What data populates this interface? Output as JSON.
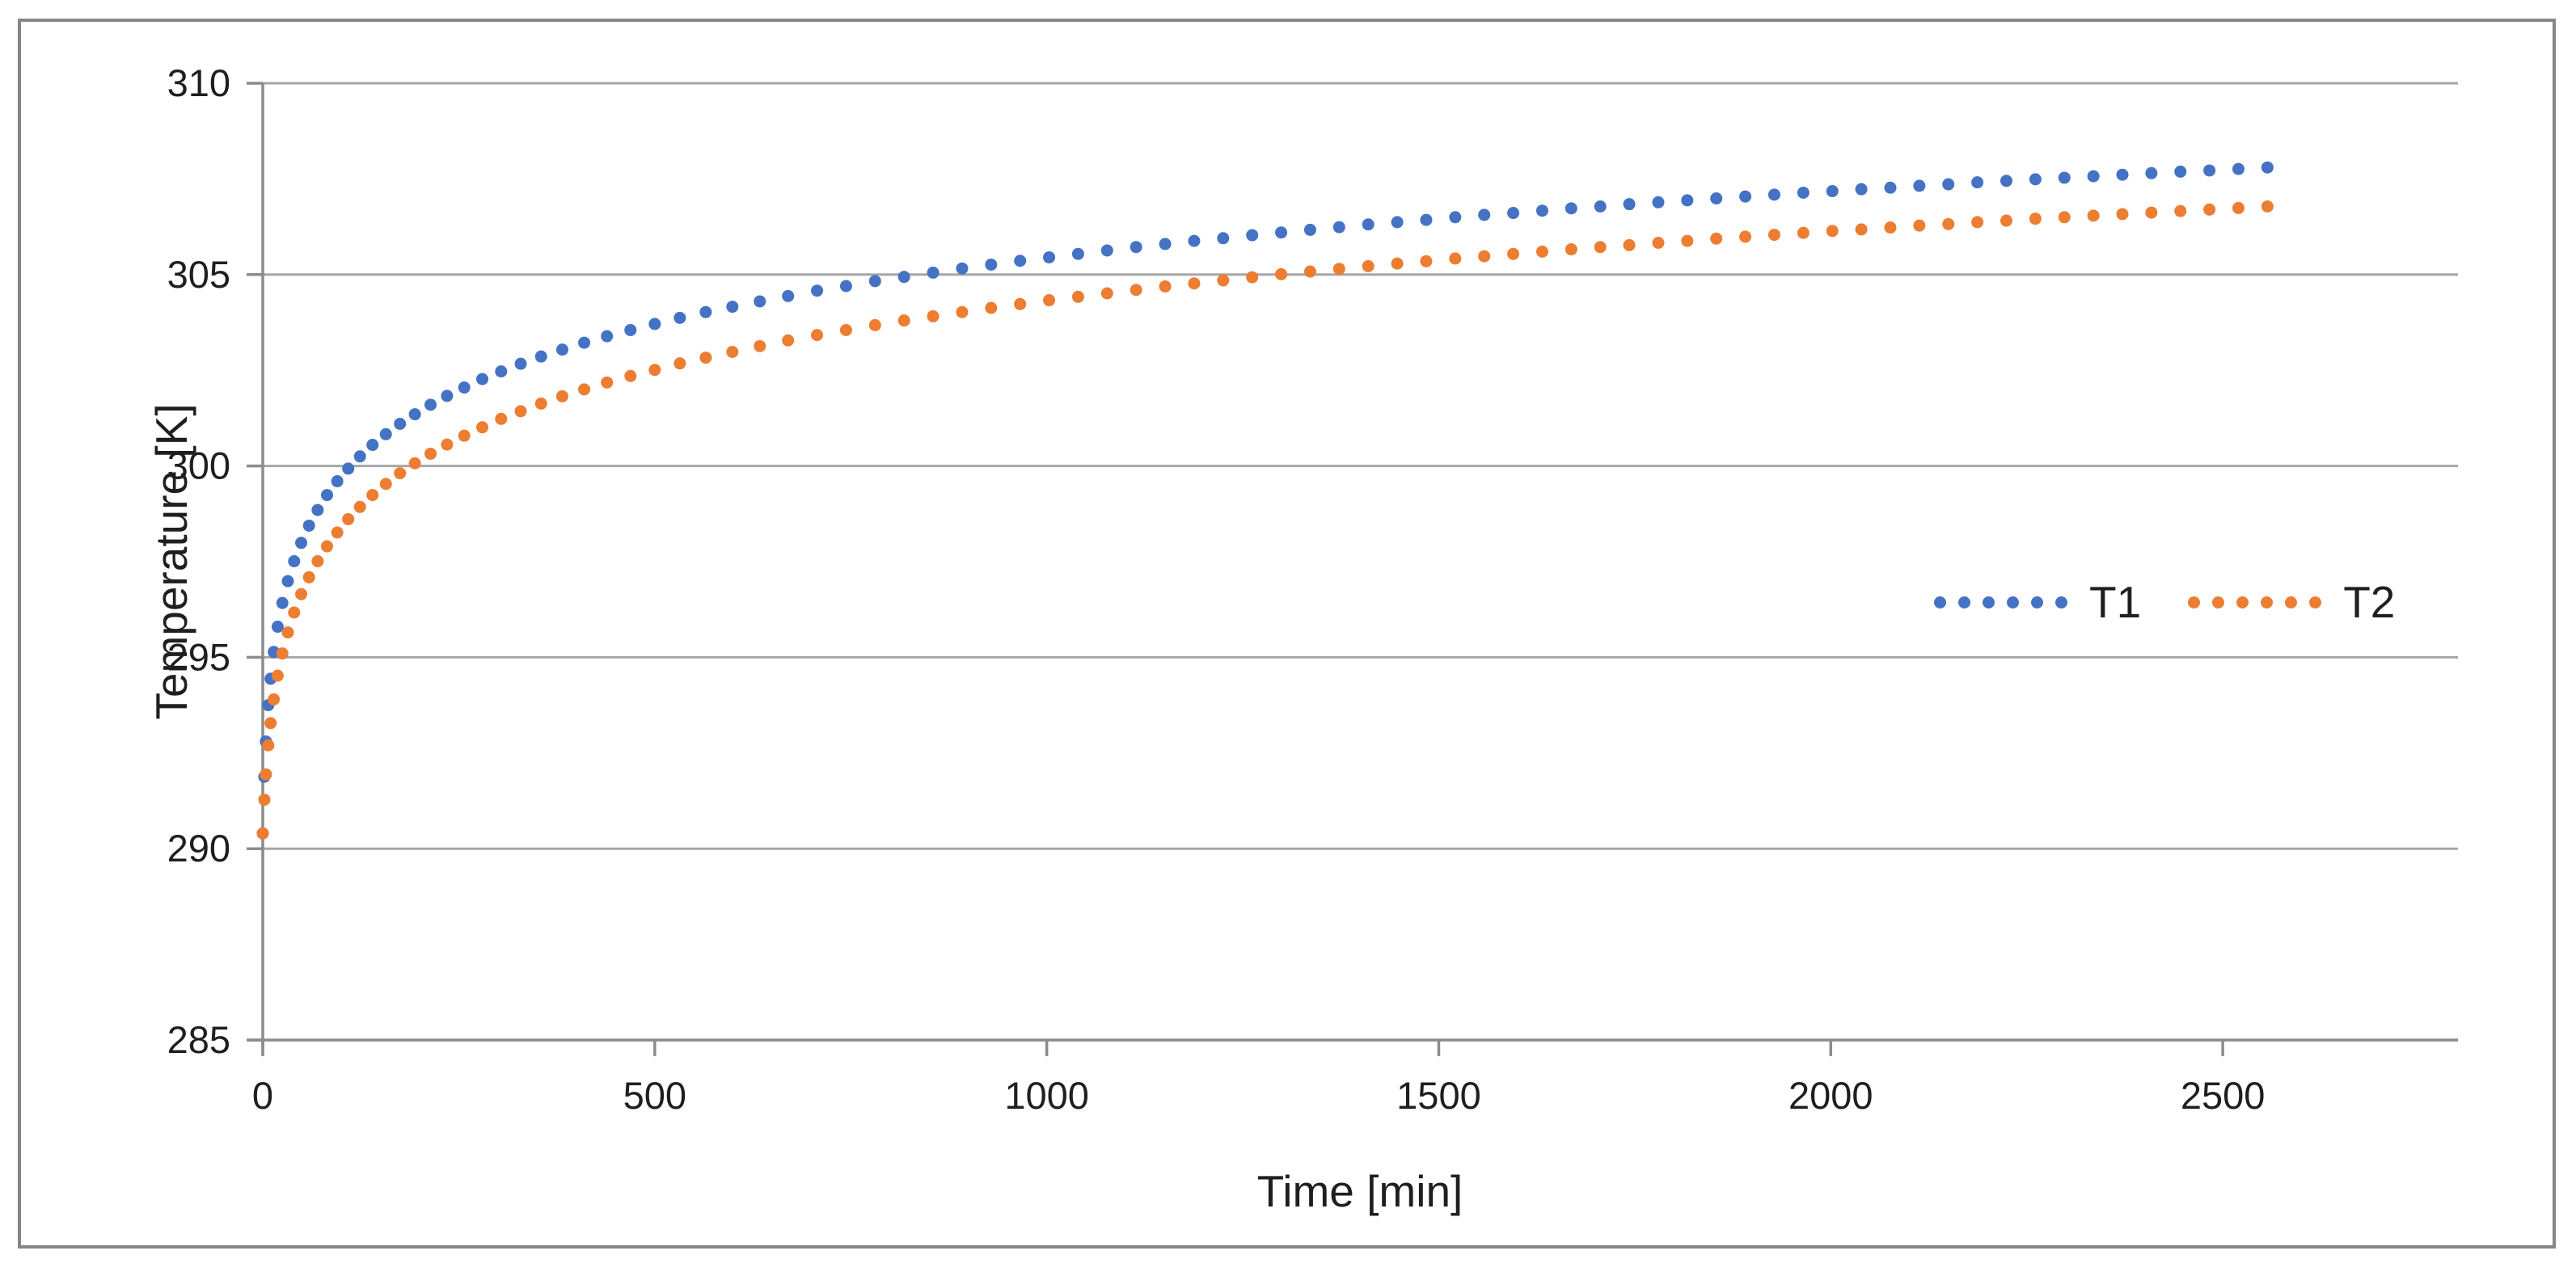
{
  "chart_data": {
    "type": "scatter",
    "title": "",
    "xlabel": "Time [min]",
    "ylabel": "Temperature [K]",
    "xlim": [
      0,
      2800
    ],
    "ylim": [
      285,
      310
    ],
    "x_ticks": [
      0,
      500,
      1000,
      1500,
      2000,
      2500
    ],
    "y_ticks": [
      285,
      290,
      295,
      300,
      305,
      310
    ],
    "grid": "horizontal-only",
    "legend_position": "inside-right-middle",
    "x": [
      0,
      2,
      4,
      7,
      10,
      14,
      19,
      25,
      32,
      40,
      49,
      59,
      70,
      82,
      95,
      109,
      124,
      140,
      157,
      175,
      194,
      214,
      235,
      257,
      280,
      304,
      329,
      355,
      382,
      410,
      439,
      469,
      500,
      532,
      565,
      599,
      634,
      670,
      707,
      744,
      781,
      818,
      855,
      892,
      929,
      966,
      1003,
      1040,
      1077,
      1114,
      1151,
      1188,
      1225,
      1262,
      1299,
      1336,
      1373,
      1410,
      1447,
      1484,
      1521,
      1558,
      1595,
      1632,
      1669,
      1706,
      1743,
      1780,
      1817,
      1854,
      1891,
      1928,
      1965,
      2002,
      2039,
      2076,
      2113,
      2150,
      2187,
      2224,
      2261,
      2298,
      2335,
      2372,
      2409,
      2446,
      2483,
      2520,
      2557
    ],
    "series": [
      {
        "name": "T1",
        "color": "#4472C4",
        "values": [
          290.4,
          291.88,
          292.8,
          293.75,
          294.44,
          295.14,
          295.8,
          296.42,
          296.99,
          297.51,
          297.99,
          298.44,
          298.85,
          299.24,
          299.6,
          299.93,
          300.25,
          300.55,
          300.83,
          301.1,
          301.35,
          301.6,
          301.83,
          302.05,
          302.27,
          302.47,
          302.67,
          302.86,
          303.04,
          303.22,
          303.39,
          303.55,
          303.71,
          303.87,
          304.02,
          304.16,
          304.3,
          304.44,
          304.58,
          304.7,
          304.83,
          304.94,
          305.05,
          305.16,
          305.26,
          305.36,
          305.45,
          305.54,
          305.63,
          305.72,
          305.8,
          305.88,
          305.95,
          306.03,
          306.1,
          306.17,
          306.24,
          306.31,
          306.37,
          306.43,
          306.5,
          306.56,
          306.61,
          306.67,
          306.73,
          306.78,
          306.84,
          306.89,
          306.94,
          306.99,
          307.04,
          307.09,
          307.14,
          307.18,
          307.23,
          307.27,
          307.32,
          307.36,
          307.41,
          307.45,
          307.49,
          307.53,
          307.57,
          307.61,
          307.65,
          307.69,
          307.72,
          307.76,
          307.8
        ]
      },
      {
        "name": "T2",
        "color": "#ED7D31",
        "values": [
          290.4,
          291.28,
          291.94,
          292.7,
          293.28,
          293.9,
          294.52,
          295.1,
          295.65,
          296.17,
          296.65,
          297.09,
          297.51,
          297.9,
          298.26,
          298.61,
          298.93,
          299.24,
          299.53,
          299.81,
          300.07,
          300.32,
          300.56,
          300.79,
          301.01,
          301.23,
          301.43,
          301.63,
          301.82,
          302.0,
          302.18,
          302.35,
          302.51,
          302.68,
          302.83,
          302.98,
          303.13,
          303.28,
          303.42,
          303.55,
          303.68,
          303.8,
          303.91,
          304.02,
          304.13,
          304.23,
          304.33,
          304.42,
          304.51,
          304.6,
          304.69,
          304.77,
          304.85,
          304.93,
          305.01,
          305.08,
          305.15,
          305.22,
          305.29,
          305.35,
          305.42,
          305.48,
          305.54,
          305.6,
          305.66,
          305.72,
          305.77,
          305.83,
          305.88,
          305.94,
          305.99,
          306.04,
          306.09,
          306.14,
          306.18,
          306.23,
          306.28,
          306.32,
          306.37,
          306.41,
          306.46,
          306.5,
          306.54,
          306.58,
          306.62,
          306.66,
          306.7,
          306.74,
          306.78
        ]
      }
    ]
  },
  "colors": {
    "series_t1": "#4472C4",
    "series_t2": "#ED7D31",
    "gridline": "#A6A6A6",
    "axis_line": "#8C8C8C",
    "chart_border": "#868686",
    "text": "#1f1f1f",
    "background": "#ffffff"
  }
}
